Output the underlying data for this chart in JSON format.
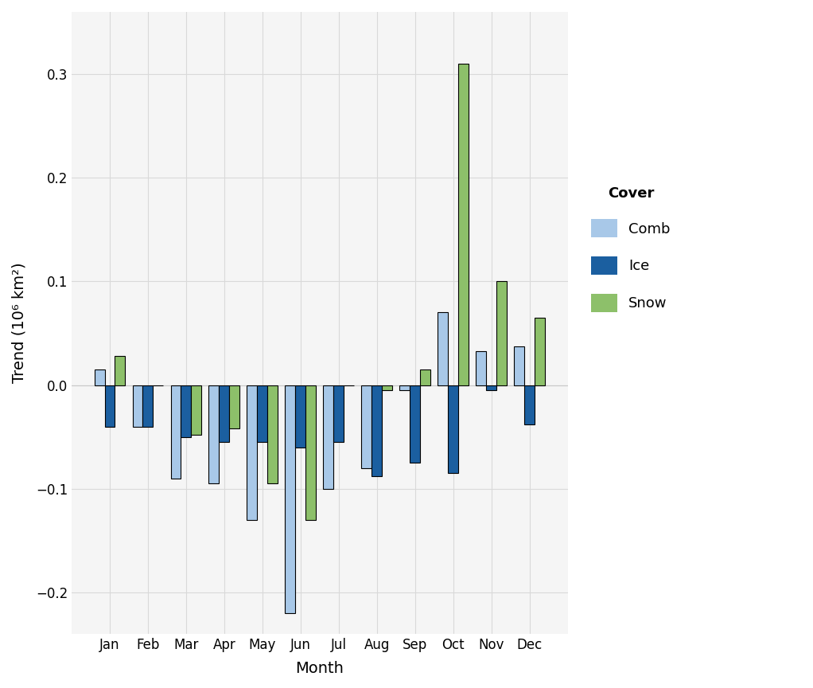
{
  "months": [
    "Jan",
    "Feb",
    "Mar",
    "Apr",
    "May",
    "Jun",
    "Jul",
    "Aug",
    "Sep",
    "Oct",
    "Nov",
    "Dec"
  ],
  "comb": [
    0.015,
    -0.04,
    -0.09,
    -0.095,
    -0.13,
    -0.22,
    -0.1,
    -0.08,
    -0.005,
    0.07,
    0.033,
    0.037
  ],
  "ice": [
    -0.04,
    -0.04,
    -0.05,
    -0.055,
    -0.055,
    -0.06,
    -0.055,
    -0.088,
    -0.075,
    -0.085,
    -0.005,
    -0.038
  ],
  "snow": [
    0.028,
    0.0,
    -0.048,
    -0.042,
    -0.095,
    -0.13,
    0.0,
    -0.005,
    0.015,
    0.31,
    0.1,
    0.065
  ],
  "color_comb": "#a8c8e8",
  "color_ice": "#1b5fa0",
  "color_snow": "#8dc06a",
  "color_outline": "#000000",
  "xlabel": "Month",
  "ylabel": "Trend (10⁶ km²)",
  "ylim_min": -0.24,
  "ylim_max": 0.36,
  "yticks": [
    -0.2,
    -0.1,
    0.0,
    0.1,
    0.2,
    0.3
  ],
  "background_color": "#ffffff",
  "panel_color": "#f5f5f5",
  "grid_color": "#d9d9d9",
  "legend_title": "Cover",
  "bar_width": 0.27
}
